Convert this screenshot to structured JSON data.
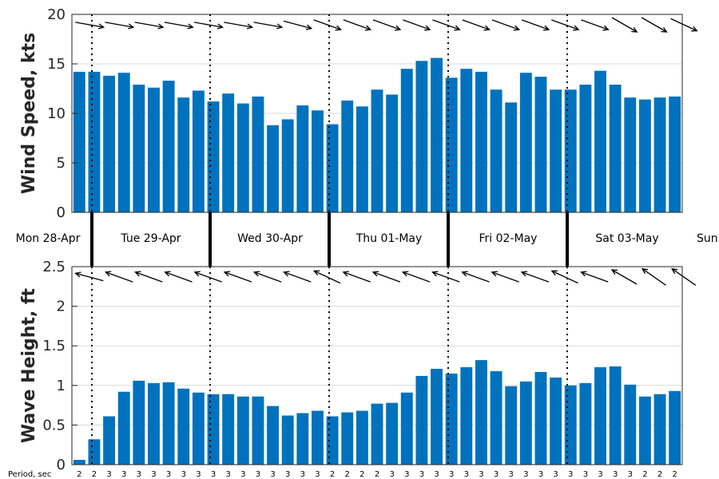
{
  "chart_data": [
    {
      "type": "bar",
      "ylabel": "Wind Speed, kts",
      "ylim": [
        0,
        20
      ],
      "yticks": [
        0,
        5,
        10,
        15,
        20
      ],
      "values": [
        14.2,
        14.2,
        13.8,
        14.1,
        12.9,
        12.6,
        13.3,
        11.6,
        12.3,
        11.2,
        12.0,
        11.0,
        11.7,
        8.8,
        9.4,
        10.8,
        10.3,
        8.9,
        11.3,
        10.7,
        12.4,
        11.9,
        14.5,
        15.3,
        15.6,
        13.6,
        14.5,
        14.2,
        12.4,
        11.1,
        14.1,
        13.7,
        12.4,
        12.4,
        12.9,
        14.3,
        12.9,
        11.6,
        11.4,
        11.6,
        11.7
      ],
      "arrow_dir_deg": [
        100,
        100,
        100,
        100,
        100,
        100,
        100,
        100,
        100,
        100,
        100,
        100,
        100,
        100,
        105,
        110,
        110,
        110,
        110,
        105,
        110,
        105,
        110,
        115,
        110,
        105,
        110,
        105,
        110,
        110,
        110,
        105,
        110,
        110,
        110,
        115,
        120,
        120,
        120,
        115,
        115
      ],
      "grid": true
    },
    {
      "type": "bar",
      "ylabel": "Wave Height, ft",
      "ylim": [
        0,
        2.5
      ],
      "yticks": [
        "0",
        "0.5",
        "1",
        "1.5",
        "2",
        "2.5"
      ],
      "values": [
        0.06,
        0.32,
        0.61,
        0.92,
        1.06,
        1.03,
        1.04,
        0.96,
        0.91,
        0.89,
        0.89,
        0.86,
        0.86,
        0.74,
        0.62,
        0.65,
        0.68,
        0.61,
        0.66,
        0.68,
        0.77,
        0.78,
        0.91,
        1.12,
        1.21,
        1.15,
        1.23,
        1.32,
        1.18,
        0.99,
        1.05,
        1.17,
        1.1,
        1.0,
        1.03,
        1.23,
        1.24,
        1.01,
        0.86,
        0.89,
        0.93
      ],
      "arrow_dir_deg": [
        285,
        285,
        290,
        290,
        290,
        290,
        290,
        290,
        290,
        290,
        290,
        290,
        290,
        290,
        290,
        295,
        295,
        290,
        290,
        290,
        290,
        290,
        290,
        290,
        290,
        290,
        290,
        290,
        290,
        290,
        290,
        295,
        295,
        290,
        290,
        295,
        300,
        300,
        305,
        305,
        305
      ],
      "period_label": "Period, sec",
      "periods": [
        "2",
        "2",
        "3",
        "3",
        "3",
        "3",
        "3",
        "3",
        "3",
        "3",
        "3",
        "3",
        "3",
        "3",
        "3",
        "3",
        "3",
        "2",
        "2",
        "2",
        "2",
        "3",
        "3",
        "3",
        "3",
        "3",
        "3",
        "3",
        "3",
        "3",
        "3",
        "3",
        "3",
        "3",
        "3",
        "3",
        "3",
        "3",
        "2",
        "2",
        "2"
      ],
      "grid": true
    }
  ],
  "days": [
    "Mon 28-Apr",
    "Tue 29-Apr",
    "Wed 30-Apr",
    "Thu 01-May",
    "Fri 02-May",
    "Sat 03-May",
    "Sun"
  ],
  "colors": {
    "bar": "#0072bd",
    "axis": "#262626",
    "grid": "#d9d9d9"
  }
}
